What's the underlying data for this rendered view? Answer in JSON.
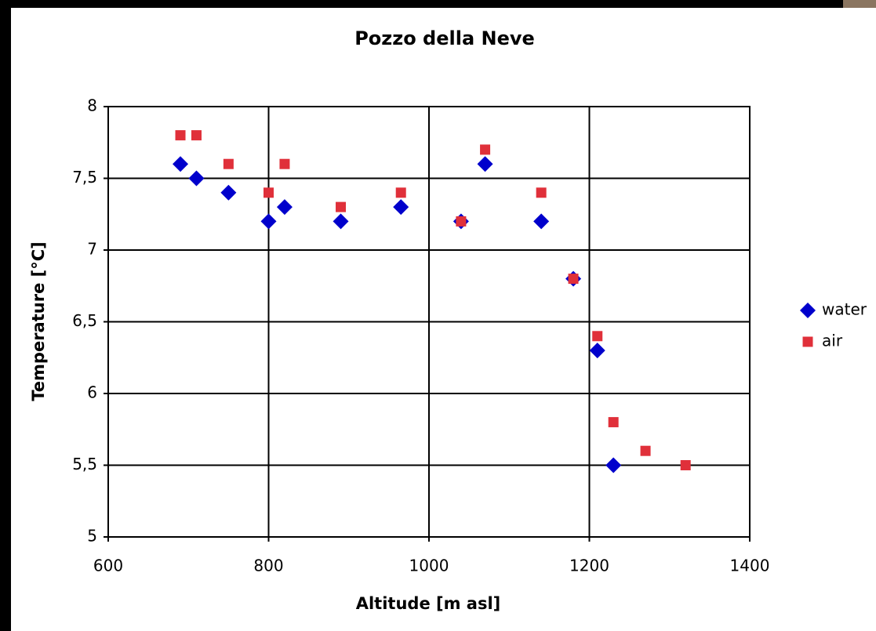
{
  "chart_data": {
    "type": "scatter",
    "title": "Pozzo della Neve",
    "x_label": "Altitude [m asl]",
    "y_label": "Temperature [°C]",
    "xlim": [
      600,
      1400
    ],
    "xticks": [
      600,
      800,
      1000,
      1200,
      1400
    ],
    "ylim": [
      5,
      8
    ],
    "yticks": [
      5,
      {
        "value": 5.5,
        "label": "5,5"
      },
      6,
      {
        "value": 6.5,
        "label": "6,5"
      },
      7,
      {
        "value": 7.5,
        "label": "7,5"
      },
      8
    ],
    "grid": true,
    "legend": "right",
    "series": [
      {
        "name": "water",
        "color": "#0000cc",
        "marker": "diamond",
        "x": [
          690,
          710,
          750,
          800,
          820,
          890,
          965,
          1040,
          1070,
          1140,
          1180,
          1210,
          1230
        ],
        "values": [
          7.6,
          7.5,
          7.4,
          7.2,
          7.3,
          7.2,
          7.3,
          7.2,
          7.6,
          7.2,
          6.8,
          6.3,
          5.5
        ]
      },
      {
        "name": "air",
        "color": "#e0303a",
        "marker": "square",
        "x": [
          690,
          710,
          750,
          800,
          820,
          890,
          965,
          1040,
          1070,
          1140,
          1180,
          1210,
          1230,
          1270,
          1320
        ],
        "values": [
          7.8,
          7.8,
          7.6,
          7.4,
          7.6,
          7.3,
          7.4,
          7.2,
          7.7,
          7.4,
          6.8,
          6.4,
          5.8,
          5.6,
          5.5
        ]
      }
    ]
  }
}
